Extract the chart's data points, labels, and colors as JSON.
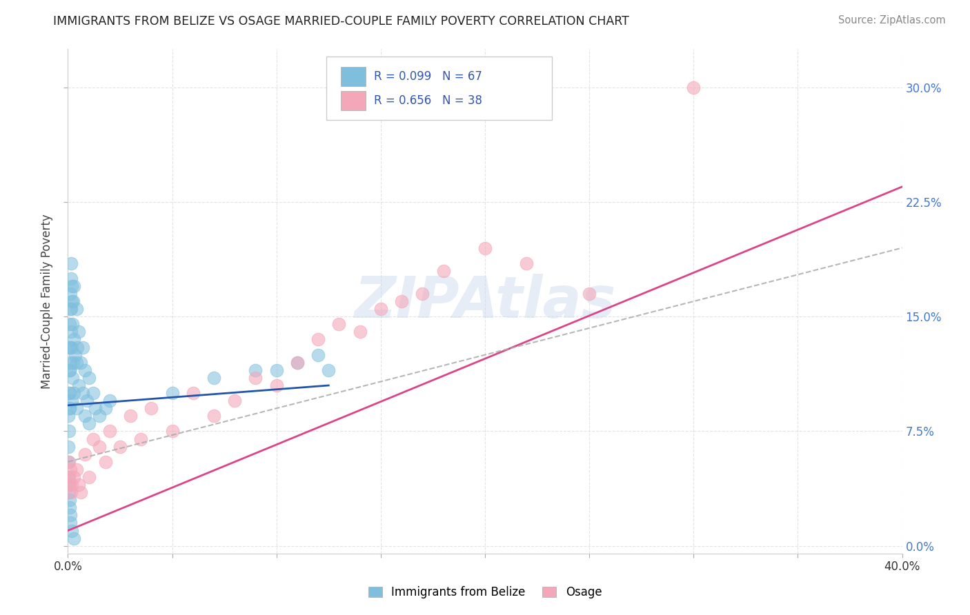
{
  "title": "IMMIGRANTS FROM BELIZE VS OSAGE MARRIED-COUPLE FAMILY POVERTY CORRELATION CHART",
  "source_text": "Source: ZipAtlas.com",
  "ylabel": "Married-Couple Family Poverty",
  "xlim": [
    0.0,
    0.4
  ],
  "ylim": [
    -0.005,
    0.325
  ],
  "xticks": [
    0.0,
    0.05,
    0.1,
    0.15,
    0.2,
    0.25,
    0.3,
    0.35,
    0.4
  ],
  "xtick_labels": [
    "0.0%",
    "",
    "",
    "",
    "",
    "",
    "",
    "",
    "40.0%"
  ],
  "yticks": [
    0.0,
    0.075,
    0.15,
    0.225,
    0.3
  ],
  "ytick_labels_left": [
    "",
    "",
    "",
    "",
    ""
  ],
  "ytick_labels_right": [
    "0.0%",
    "7.5%",
    "15.0%",
    "22.5%",
    "30.0%"
  ],
  "watermark": "ZIPAtlas",
  "legend_label1": "Immigrants from Belize",
  "legend_label2": "Osage",
  "R1": "0.099",
  "N1": "67",
  "R2": "0.656",
  "N2": "38",
  "color_blue": "#7fbfdd",
  "color_pink": "#f4a7b9",
  "line_color_blue": "#2255aa",
  "line_color_pink": "#dd4488",
  "background_color": "#ffffff",
  "grid_color": "#dddddd",
  "blue_scatter_x": [
    0.0003,
    0.0003,
    0.0005,
    0.0005,
    0.0007,
    0.0007,
    0.0008,
    0.0008,
    0.001,
    0.001,
    0.001,
    0.0012,
    0.0012,
    0.0013,
    0.0013,
    0.0015,
    0.0015,
    0.0016,
    0.0016,
    0.0018,
    0.002,
    0.002,
    0.002,
    0.0022,
    0.0022,
    0.0025,
    0.0025,
    0.003,
    0.003,
    0.003,
    0.0035,
    0.004,
    0.004,
    0.004,
    0.0045,
    0.005,
    0.005,
    0.006,
    0.007,
    0.007,
    0.008,
    0.008,
    0.009,
    0.01,
    0.01,
    0.012,
    0.013,
    0.015,
    0.018,
    0.02,
    0.0003,
    0.0004,
    0.0005,
    0.0006,
    0.0007,
    0.001,
    0.0012,
    0.0013,
    0.002,
    0.003,
    0.05,
    0.07,
    0.09,
    0.1,
    0.11,
    0.12,
    0.125
  ],
  "blue_scatter_y": [
    0.085,
    0.065,
    0.1,
    0.075,
    0.115,
    0.09,
    0.13,
    0.1,
    0.145,
    0.115,
    0.09,
    0.155,
    0.12,
    0.165,
    0.13,
    0.175,
    0.14,
    0.185,
    0.155,
    0.17,
    0.16,
    0.13,
    0.095,
    0.145,
    0.11,
    0.16,
    0.12,
    0.17,
    0.135,
    0.1,
    0.125,
    0.155,
    0.12,
    0.09,
    0.13,
    0.14,
    0.105,
    0.12,
    0.13,
    0.1,
    0.115,
    0.085,
    0.095,
    0.11,
    0.08,
    0.1,
    0.09,
    0.085,
    0.09,
    0.095,
    0.055,
    0.045,
    0.04,
    0.035,
    0.03,
    0.025,
    0.02,
    0.015,
    0.01,
    0.005,
    0.1,
    0.11,
    0.115,
    0.115,
    0.12,
    0.125,
    0.115
  ],
  "pink_scatter_x": [
    0.0003,
    0.0005,
    0.001,
    0.0012,
    0.0015,
    0.002,
    0.003,
    0.004,
    0.005,
    0.006,
    0.008,
    0.01,
    0.012,
    0.015,
    0.018,
    0.02,
    0.025,
    0.03,
    0.035,
    0.04,
    0.05,
    0.06,
    0.07,
    0.08,
    0.09,
    0.1,
    0.11,
    0.12,
    0.13,
    0.14,
    0.15,
    0.16,
    0.17,
    0.18,
    0.2,
    0.22,
    0.25,
    0.3
  ],
  "pink_scatter_y": [
    0.045,
    0.055,
    0.04,
    0.05,
    0.035,
    0.04,
    0.045,
    0.05,
    0.04,
    0.035,
    0.06,
    0.045,
    0.07,
    0.065,
    0.055,
    0.075,
    0.065,
    0.085,
    0.07,
    0.09,
    0.075,
    0.1,
    0.085,
    0.095,
    0.11,
    0.105,
    0.12,
    0.135,
    0.145,
    0.14,
    0.155,
    0.16,
    0.165,
    0.18,
    0.195,
    0.185,
    0.165,
    0.3
  ],
  "blue_line_x": [
    0.0,
    0.125
  ],
  "blue_line_y": [
    0.092,
    0.105
  ],
  "pink_line_x": [
    0.0,
    0.4
  ],
  "pink_line_y": [
    0.01,
    0.235
  ],
  "dashed_line_x": [
    0.0,
    0.4
  ],
  "dashed_line_y": [
    0.055,
    0.195
  ]
}
